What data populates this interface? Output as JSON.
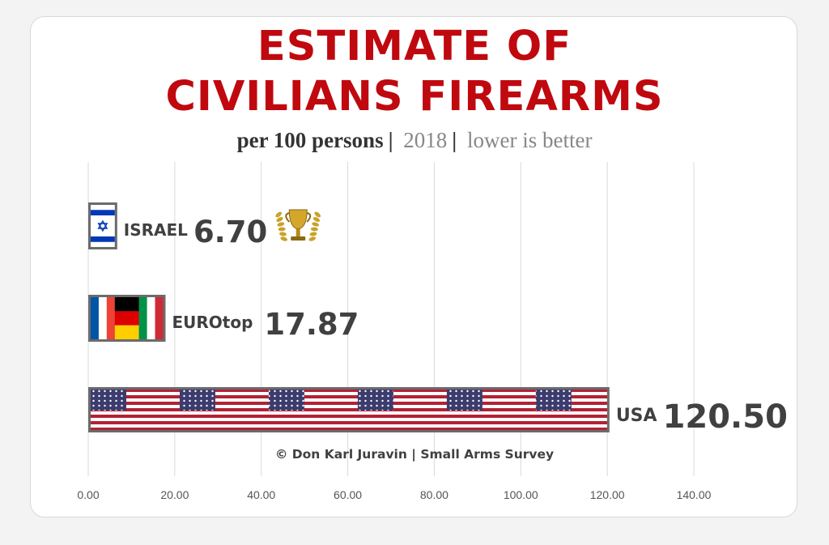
{
  "colors": {
    "title": "#c0080f",
    "text": "#404040",
    "grid": "#d9d9d9",
    "gold": "#c9a227"
  },
  "header": {
    "title_line1": "ESTIMATE OF",
    "title_line2": "CIVILIANS FIREARMS",
    "subtitle_unit": "per 100 persons",
    "subtitle_sep1": "|",
    "subtitle_year": "2018",
    "subtitle_sep2": "|",
    "subtitle_note": "lower is better"
  },
  "source": "© Don Karl Juravin |  Small Arms Survey",
  "icons": {
    "trophy": "trophy-icon",
    "israel": "israel-flag",
    "euro": "euro-flags",
    "usa": "usa-flag"
  },
  "chart_data": {
    "type": "bar",
    "orientation": "horizontal",
    "title": "ESTIMATE OF CIVILIANS FIREARMS",
    "subtitle": "per 100 persons | 2018 | lower is better",
    "categories": [
      "ISRAEL",
      "EUROtop",
      "USA"
    ],
    "values": [
      6.7,
      17.87,
      120.5
    ],
    "value_labels": [
      "6.70",
      "17.87",
      "120.50"
    ],
    "xlim": [
      0,
      140
    ],
    "xticks": [
      "0.00",
      "20.00",
      "40.00",
      "60.00",
      "80.00",
      "100.00",
      "120.00",
      "140.00"
    ],
    "grid": true,
    "legend": "none"
  }
}
